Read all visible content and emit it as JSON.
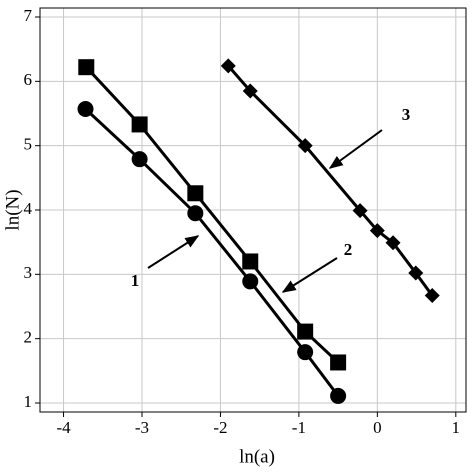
{
  "chart_data": {
    "type": "scatter",
    "x_label": "ln(a)",
    "y_label": "ln(N)",
    "xlim": [
      -4.3,
      1.13
    ],
    "ylim": [
      0.86,
      7.14
    ],
    "xticks": [
      -4,
      -3,
      -2,
      -1,
      0,
      1
    ],
    "yticks": [
      1,
      2,
      3,
      4,
      5,
      6,
      7
    ],
    "grid": true,
    "annotations": [
      "1",
      "2",
      "3"
    ],
    "series": [
      {
        "marker": "circle",
        "color": "#000000",
        "x": [
          -3.72,
          -3.03,
          -2.32,
          -1.62,
          -0.92,
          -0.5
        ],
        "values": [
          5.57,
          4.79,
          3.95,
          2.89,
          1.79,
          1.11
        ]
      },
      {
        "marker": "square",
        "color": "#000000",
        "x": [
          -3.71,
          -3.03,
          -2.32,
          -1.62,
          -0.92,
          -0.5
        ],
        "values": [
          6.22,
          5.33,
          4.26,
          3.2,
          2.11,
          1.63
        ]
      },
      {
        "marker": "diamond",
        "color": "#000000",
        "x": [
          -1.9,
          -1.62,
          -0.92,
          -0.22,
          0,
          0.2,
          0.49,
          0.7
        ],
        "values": [
          6.24,
          5.85,
          5.0,
          3.99,
          3.68,
          3.49,
          3.02,
          2.67
        ]
      }
    ]
  }
}
